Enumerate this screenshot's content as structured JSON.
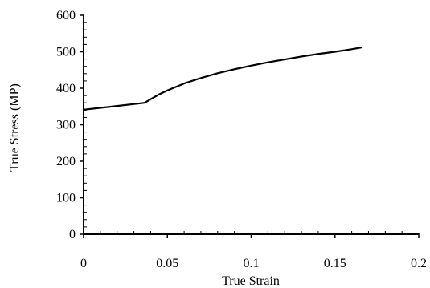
{
  "chart_data": {
    "type": "line",
    "title": "",
    "xlabel": "True Strain",
    "ylabel": "True Stress (MP)",
    "xlim": [
      0,
      0.2
    ],
    "ylim": [
      0,
      600
    ],
    "x_ticks": [
      "0",
      "0.05",
      "0.1",
      "0.15",
      "0.2"
    ],
    "y_ticks": [
      "0",
      "100",
      "200",
      "300",
      "400",
      "500",
      "600"
    ],
    "grid": false,
    "legend": "none",
    "series": [
      {
        "x": [
          0,
          0.0365,
          0.04,
          0.045,
          0.05,
          0.06,
          0.07,
          0.08,
          0.09,
          0.1,
          0.11,
          0.12,
          0.13,
          0.14,
          0.15,
          0.16,
          0.166
        ],
        "y": [
          341,
          360,
          370,
          383,
          394,
          413,
          428,
          441,
          452,
          462,
          471,
          479,
          487,
          494,
          500,
          507,
          512
        ]
      }
    ],
    "colors": {
      "line": "#000000",
      "axis": "#000000"
    }
  }
}
